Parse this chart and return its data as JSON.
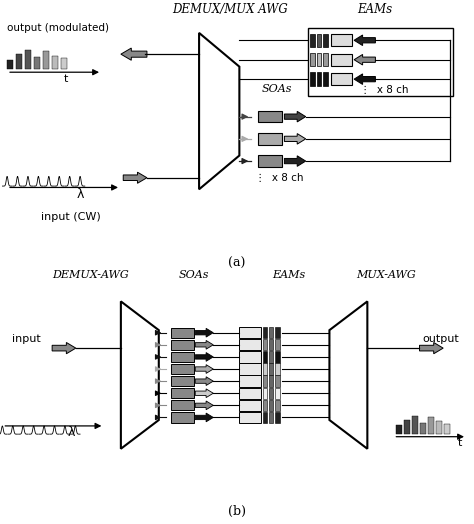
{
  "fig_width": 4.74,
  "fig_height": 5.24,
  "dpi": 100,
  "bg_color": "#ffffff",
  "title_a": "DEMUX/MUX AWG",
  "title_a_eams": "EAMs",
  "title_b_demux": "DEMUX-AWG",
  "title_b_soas": "SOAs",
  "title_b_eams": "EAMs",
  "title_b_mux": "MUX-AWG",
  "label_a": "(a)",
  "label_b": "(b)",
  "text_output_mod": "output (modulated)",
  "text_t_a": "t",
  "text_lambda_a": "λ",
  "text_input_cw": "input (CW)",
  "text_soas_a": "SOAs",
  "text_x8ch_a_top": "⋮  x 8 ch",
  "text_x8ch_a_bot": "⋮  x 8 ch",
  "text_input_b": "input",
  "text_output_b": "output",
  "text_lambda_b": "λ",
  "text_t_b": "t",
  "eam_bar_colors_a": [
    [
      "#222222",
      "#555555",
      "#222222"
    ],
    [
      "#999999",
      "#bbbbbb",
      "#999999"
    ],
    [
      "#111111",
      "#111111",
      "#111111"
    ]
  ],
  "soa_colors_a": [
    "#888888",
    "#aaaaaa",
    "#888888"
  ],
  "arrow_shades_a_soa": [
    "#444444",
    "#aaaaaa",
    "#222222"
  ],
  "arrow_shades_a_eam": [
    "#222222",
    "#888888",
    "#111111"
  ],
  "arrow_colors_b": [
    "#111111",
    "#888888",
    "#111111",
    "#aaaaaa",
    "#888888",
    "#dddddd",
    "#888888",
    "#111111"
  ],
  "eam_fill_colors_b": [
    "#222222",
    "#888888",
    "#111111",
    "#cccccc",
    "#888888",
    "#eeeeee",
    "#888888",
    "#222222"
  ]
}
